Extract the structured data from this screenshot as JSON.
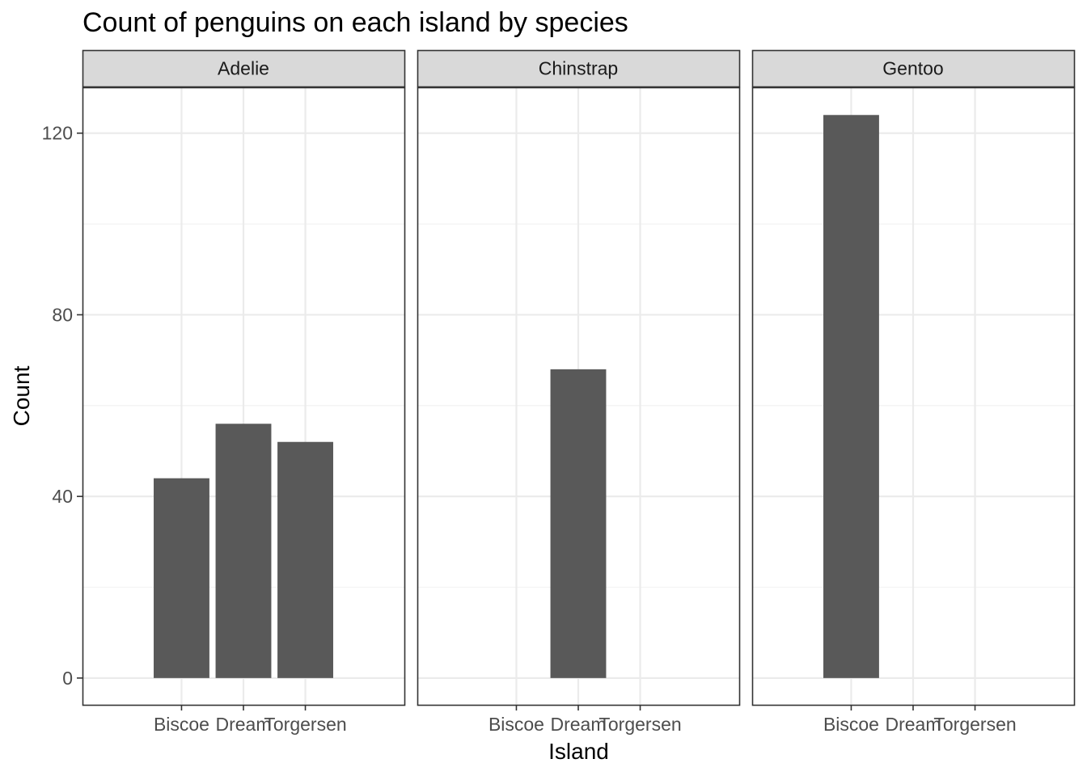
{
  "chart_data": {
    "type": "bar",
    "title": "Count of penguins on each island by species",
    "xlabel": "Island",
    "ylabel": "Count",
    "ylim": [
      0,
      130
    ],
    "y_ticks": [
      0,
      40,
      80,
      120
    ],
    "grid": true,
    "facet_by": "species",
    "categories": [
      "Biscoe",
      "Dream",
      "Torgersen"
    ],
    "facets": [
      {
        "name": "Adelie",
        "values": [
          44,
          56,
          52
        ]
      },
      {
        "name": "Chinstrap",
        "values": [
          0,
          68,
          0
        ]
      },
      {
        "name": "Gentoo",
        "values": [
          124,
          0,
          0
        ]
      }
    ],
    "colors": {
      "bar": "#595959",
      "strip_fill": "#D9D9D9",
      "panel_border": "#333333",
      "grid_major": "#EBEBEB",
      "grid_minor": "#F3F3F3"
    }
  }
}
